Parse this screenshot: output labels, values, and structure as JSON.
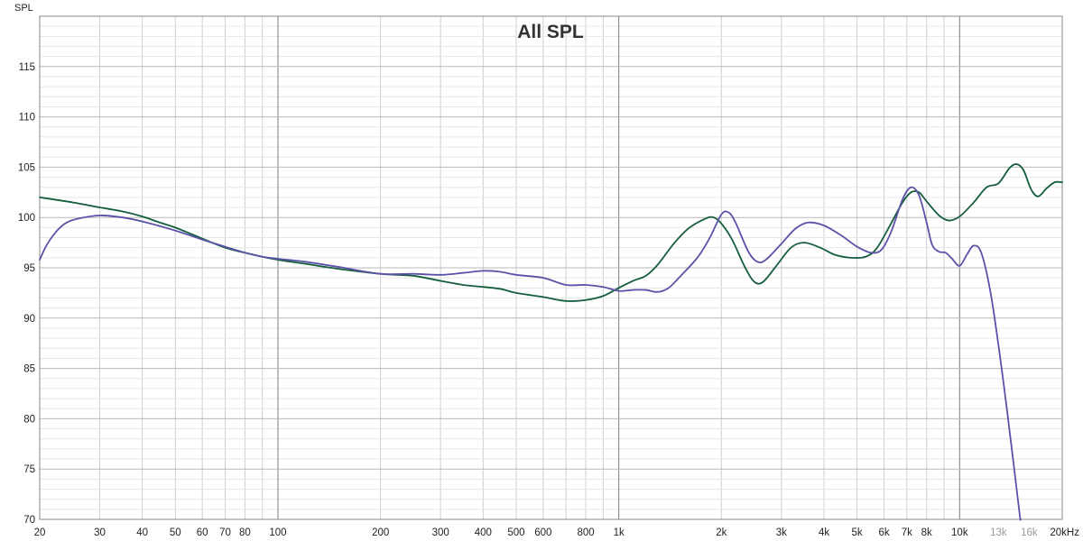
{
  "chart_data": {
    "type": "line",
    "title": "All SPL",
    "ylabel": "SPL",
    "xlabel": "",
    "x_scale": "log",
    "xlim": [
      20,
      20000
    ],
    "ylim": [
      70,
      120
    ],
    "grid": true,
    "y_ticks": [
      {
        "value": 70,
        "label": "70"
      },
      {
        "value": 75,
        "label": "75"
      },
      {
        "value": 80,
        "label": "80"
      },
      {
        "value": 85,
        "label": "85"
      },
      {
        "value": 90,
        "label": "90"
      },
      {
        "value": 95,
        "label": "95"
      },
      {
        "value": 100,
        "label": "100"
      },
      {
        "value": 105,
        "label": "105"
      },
      {
        "value": 110,
        "label": "110"
      },
      {
        "value": 115,
        "label": "115"
      }
    ],
    "x_ticks": [
      {
        "value": 20,
        "label": "20"
      },
      {
        "value": 30,
        "label": "30"
      },
      {
        "value": 40,
        "label": "40"
      },
      {
        "value": 50,
        "label": "50"
      },
      {
        "value": 60,
        "label": "60"
      },
      {
        "value": 70,
        "label": "70"
      },
      {
        "value": 80,
        "label": "80"
      },
      {
        "value": 100,
        "label": "100"
      },
      {
        "value": 200,
        "label": "200"
      },
      {
        "value": 300,
        "label": "300"
      },
      {
        "value": 400,
        "label": "400"
      },
      {
        "value": 500,
        "label": "500"
      },
      {
        "value": 600,
        "label": "600"
      },
      {
        "value": 800,
        "label": "800"
      },
      {
        "value": 1000,
        "label": "1k"
      },
      {
        "value": 2000,
        "label": "2k"
      },
      {
        "value": 3000,
        "label": "3k"
      },
      {
        "value": 4000,
        "label": "4k"
      },
      {
        "value": 5000,
        "label": "5k"
      },
      {
        "value": 6000,
        "label": "6k"
      },
      {
        "value": 7000,
        "label": "7k"
      },
      {
        "value": 8000,
        "label": "8k"
      },
      {
        "value": 10000,
        "label": "10k"
      },
      {
        "value": 13000,
        "label": "13k",
        "dim": true
      },
      {
        "value": 16000,
        "label": "16k",
        "dim": true
      },
      {
        "value": 20000,
        "label": "20kHz"
      }
    ],
    "series": [
      {
        "color": "#155e3c",
        "points": [
          [
            20,
            102.0
          ],
          [
            25,
            101.5
          ],
          [
            30,
            101.0
          ],
          [
            35,
            100.6
          ],
          [
            40,
            100.1
          ],
          [
            45,
            99.5
          ],
          [
            50,
            99.0
          ],
          [
            60,
            97.9
          ],
          [
            70,
            97.0
          ],
          [
            80,
            96.5
          ],
          [
            90,
            96.1
          ],
          [
            100,
            95.8
          ],
          [
            120,
            95.4
          ],
          [
            150,
            94.9
          ],
          [
            200,
            94.4
          ],
          [
            250,
            94.2
          ],
          [
            300,
            93.7
          ],
          [
            350,
            93.3
          ],
          [
            400,
            93.1
          ],
          [
            450,
            92.9
          ],
          [
            500,
            92.5
          ],
          [
            600,
            92.1
          ],
          [
            700,
            91.7
          ],
          [
            800,
            91.8
          ],
          [
            900,
            92.2
          ],
          [
            1000,
            93.0
          ],
          [
            1100,
            93.7
          ],
          [
            1200,
            94.2
          ],
          [
            1300,
            95.3
          ],
          [
            1450,
            97.4
          ],
          [
            1600,
            98.9
          ],
          [
            1800,
            99.9
          ],
          [
            1900,
            100.0
          ],
          [
            2000,
            99.4
          ],
          [
            2150,
            97.8
          ],
          [
            2350,
            95.0
          ],
          [
            2500,
            93.6
          ],
          [
            2650,
            93.6
          ],
          [
            2900,
            95.2
          ],
          [
            3200,
            97.0
          ],
          [
            3500,
            97.5
          ],
          [
            3900,
            97.0
          ],
          [
            4300,
            96.3
          ],
          [
            4800,
            96.0
          ],
          [
            5300,
            96.1
          ],
          [
            5700,
            96.9
          ],
          [
            6200,
            99.0
          ],
          [
            6800,
            101.5
          ],
          [
            7200,
            102.5
          ],
          [
            7600,
            102.5
          ],
          [
            8000,
            101.6
          ],
          [
            8700,
            100.2
          ],
          [
            9300,
            99.7
          ],
          [
            10000,
            100.1
          ],
          [
            11000,
            101.5
          ],
          [
            12000,
            103.0
          ],
          [
            13000,
            103.4
          ],
          [
            14000,
            104.9
          ],
          [
            14700,
            105.3
          ],
          [
            15400,
            104.7
          ],
          [
            16200,
            102.8
          ],
          [
            17000,
            102.1
          ],
          [
            18000,
            102.9
          ],
          [
            19000,
            103.5
          ],
          [
            20000,
            103.5
          ]
        ]
      },
      {
        "color": "#5a52a8",
        "points": [
          [
            20,
            95.8
          ],
          [
            21,
            97.3
          ],
          [
            22.5,
            98.7
          ],
          [
            24,
            99.5
          ],
          [
            26,
            99.9
          ],
          [
            30,
            100.2
          ],
          [
            35,
            100.0
          ],
          [
            40,
            99.6
          ],
          [
            50,
            98.7
          ],
          [
            60,
            97.8
          ],
          [
            70,
            97.1
          ],
          [
            80,
            96.5
          ],
          [
            90,
            96.1
          ],
          [
            100,
            95.9
          ],
          [
            120,
            95.6
          ],
          [
            150,
            95.1
          ],
          [
            200,
            94.4
          ],
          [
            250,
            94.4
          ],
          [
            300,
            94.3
          ],
          [
            350,
            94.5
          ],
          [
            400,
            94.7
          ],
          [
            450,
            94.6
          ],
          [
            500,
            94.3
          ],
          [
            600,
            94.0
          ],
          [
            700,
            93.3
          ],
          [
            800,
            93.3
          ],
          [
            900,
            93.1
          ],
          [
            1000,
            92.7
          ],
          [
            1100,
            92.8
          ],
          [
            1200,
            92.8
          ],
          [
            1300,
            92.6
          ],
          [
            1400,
            93.0
          ],
          [
            1500,
            94.0
          ],
          [
            1700,
            96.0
          ],
          [
            1850,
            98.0
          ],
          [
            2000,
            100.3
          ],
          [
            2100,
            100.5
          ],
          [
            2200,
            99.5
          ],
          [
            2400,
            96.6
          ],
          [
            2550,
            95.6
          ],
          [
            2700,
            95.8
          ],
          [
            3000,
            97.4
          ],
          [
            3300,
            98.9
          ],
          [
            3600,
            99.5
          ],
          [
            4000,
            99.2
          ],
          [
            4500,
            98.2
          ],
          [
            5000,
            97.1
          ],
          [
            5500,
            96.5
          ],
          [
            5900,
            96.8
          ],
          [
            6300,
            98.6
          ],
          [
            6800,
            101.8
          ],
          [
            7200,
            103.0
          ],
          [
            7600,
            102.2
          ],
          [
            8000,
            99.5
          ],
          [
            8300,
            97.3
          ],
          [
            8700,
            96.6
          ],
          [
            9100,
            96.5
          ],
          [
            9500,
            95.9
          ],
          [
            10000,
            95.2
          ],
          [
            10500,
            96.3
          ],
          [
            11000,
            97.2
          ],
          [
            11600,
            96.4
          ],
          [
            12400,
            92.0
          ],
          [
            13400,
            84.0
          ],
          [
            14400,
            75.5
          ],
          [
            15000,
            70.5
          ],
          [
            15100,
            70.0
          ]
        ]
      }
    ]
  }
}
